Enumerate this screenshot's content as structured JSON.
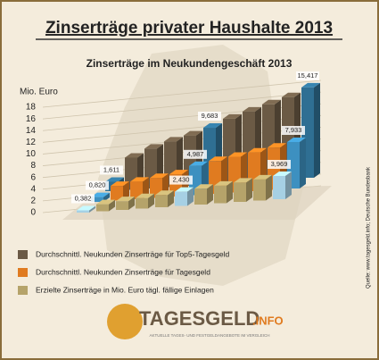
{
  "title": "Zinserträge privater Haushalte 2013",
  "source": "Quelle: www.tagesgeld.info; Deutsche Bundesbank",
  "logo": {
    "name": "TAGESGELD",
    "suffix": ".INFO",
    "tagline": "AKTUELLE TAGES- UND FESTGELDANGEBOTE IM VERGLEICH"
  },
  "chart_data": {
    "type": "bar3d",
    "title": "Zinserträge im Neukundengeschäft 2013",
    "y_label": "Mio. Euro",
    "ylim": [
      0,
      18
    ],
    "yticks": [
      0,
      2,
      4,
      6,
      8,
      10,
      12,
      14,
      16,
      18
    ],
    "grid": true,
    "highlight": [
      0,
      5,
      10
    ],
    "series": [
      {
        "name": "Durchschnittl. Neukunden Zinserträge für Top5-Tagesgeld",
        "color": "#6b5a45",
        "highlight_color": "#2f6f93",
        "values": [
          1.611,
          5.5,
          6.8,
          7.8,
          8.6,
          9.683,
          11.0,
          12.0,
          13.0,
          14.0,
          15.417
        ],
        "value_labels": [
          "1,611",
          null,
          null,
          null,
          null,
          "9,683",
          null,
          null,
          null,
          null,
          "15,417"
        ]
      },
      {
        "name": "Durchschnittl. Neukunden Zinserträge für Tagesgeld",
        "color": "#e07b20",
        "highlight_color": "#3d90c0",
        "values": [
          0.82,
          2.5,
          3.0,
          3.4,
          3.8,
          4.987,
          5.6,
          6.1,
          6.6,
          7.2,
          7.933
        ],
        "value_labels": [
          "0,820",
          null,
          null,
          null,
          null,
          "4,987",
          null,
          null,
          null,
          null,
          "7,933"
        ]
      },
      {
        "name": "Erzielte Zinserträge in Mio. Euro tägl. fällige Einlagen",
        "color": "#b5a36a",
        "highlight_color": "#a6d0e4",
        "values": [
          0.382,
          1.2,
          1.5,
          1.8,
          2.1,
          2.43,
          2.7,
          3.0,
          3.3,
          3.6,
          3.969
        ],
        "value_labels": [
          "0,382",
          null,
          null,
          null,
          null,
          "2,430",
          null,
          null,
          null,
          null,
          "3,969"
        ]
      }
    ]
  }
}
